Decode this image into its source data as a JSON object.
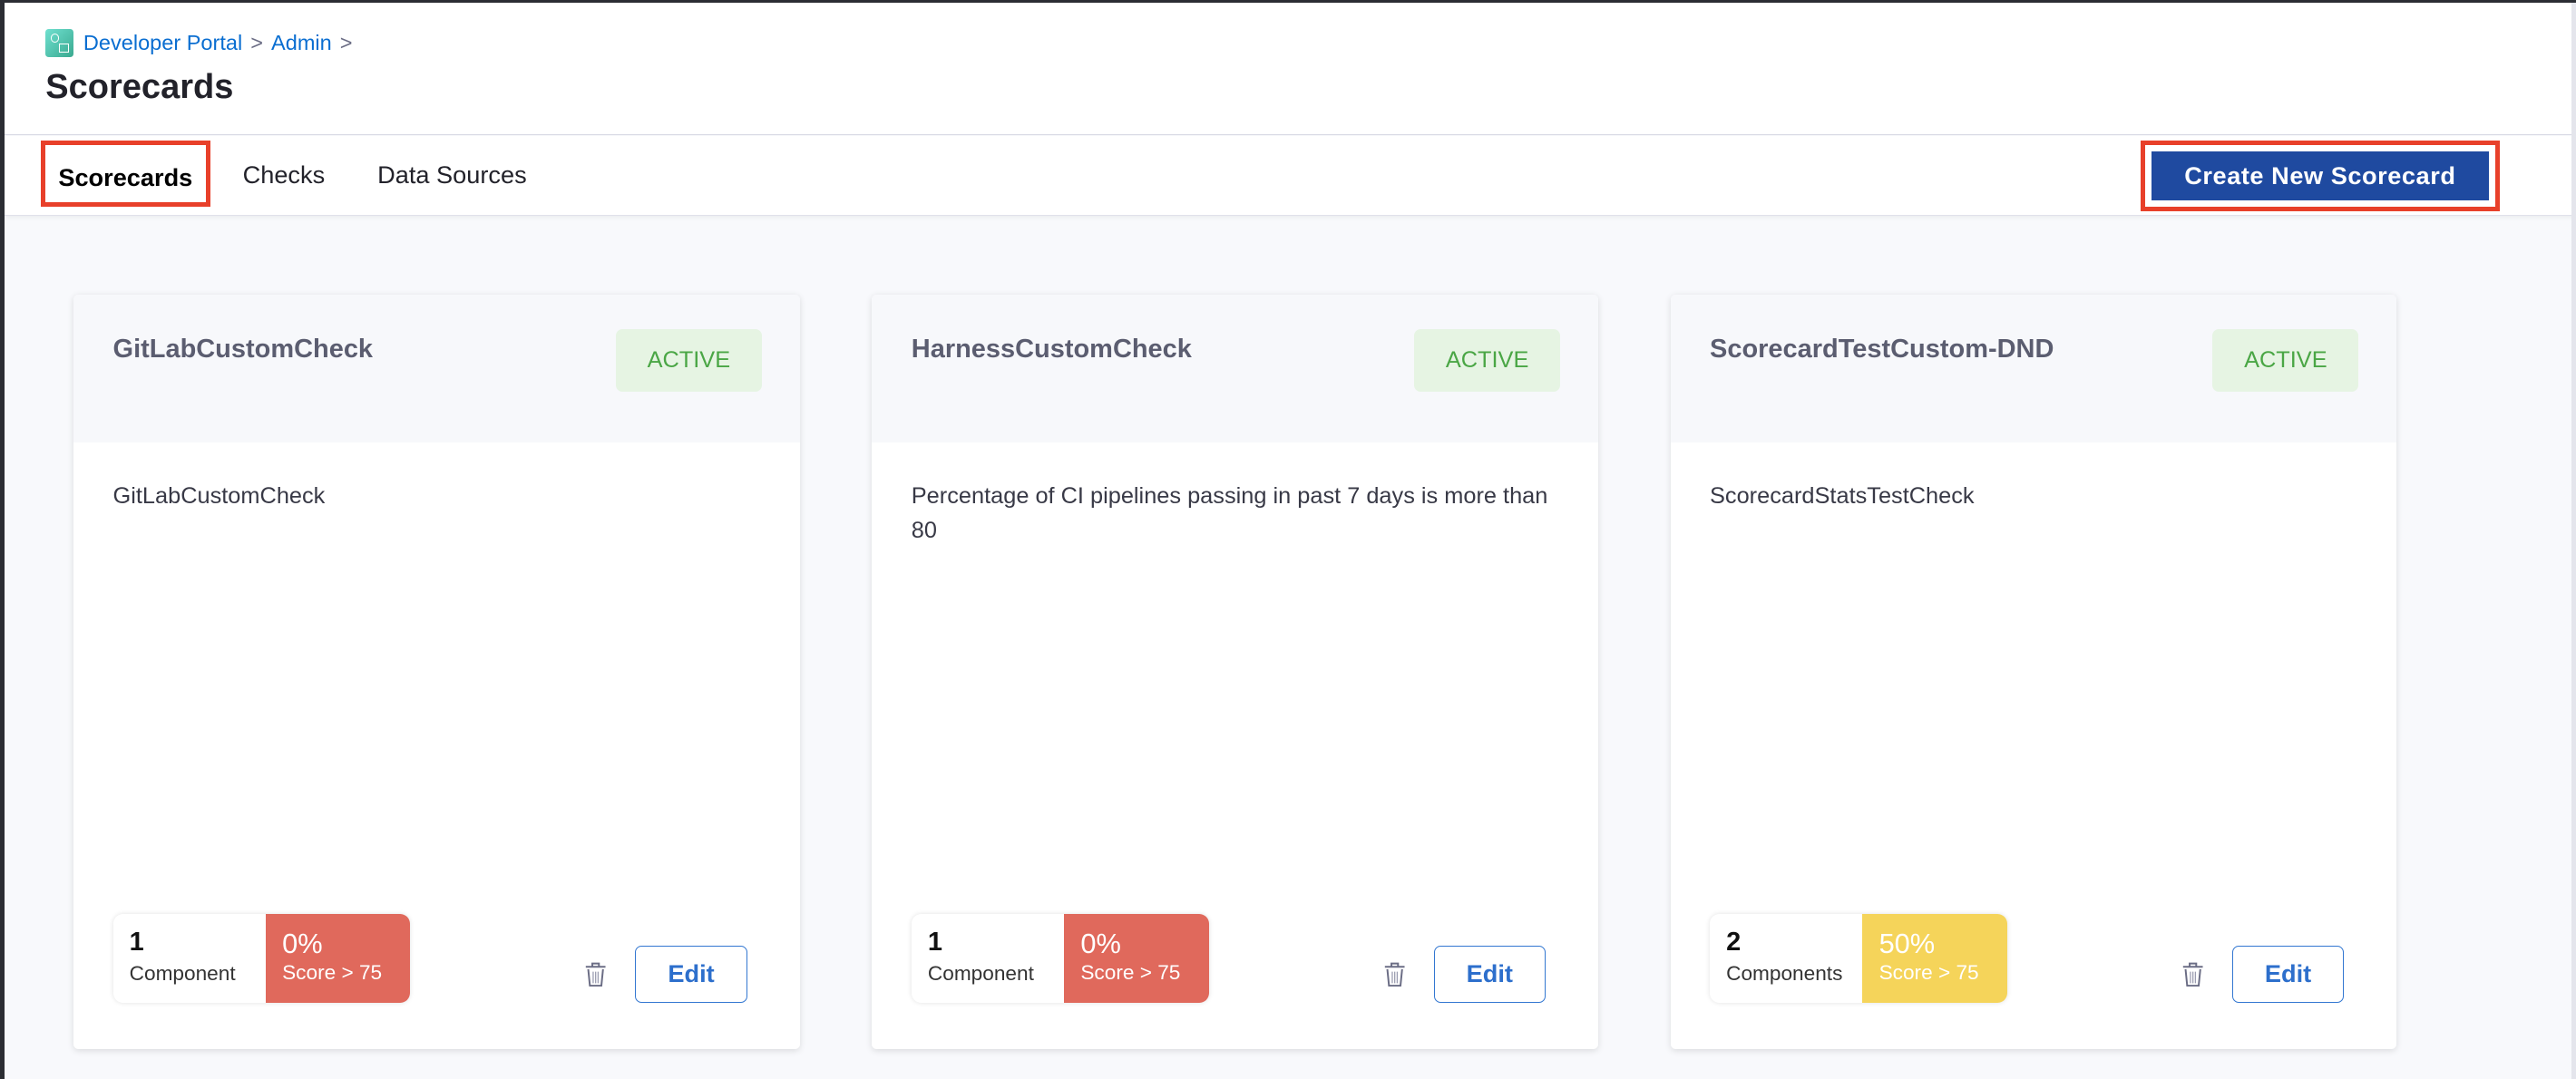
{
  "breadcrumb": [
    {
      "label": "Developer Portal"
    },
    {
      "label": "Admin"
    }
  ],
  "breadcrumb_separator": ">",
  "page_title": "Scorecards",
  "tabs": [
    {
      "label": "Scorecards",
      "active": true
    },
    {
      "label": "Checks"
    },
    {
      "label": "Data Sources"
    }
  ],
  "create_button": "Create New Scorecard",
  "colors": {
    "primary": "#1f4aa0",
    "highlight": "#e8402a",
    "score_low": "#e0695c",
    "score_mid": "#f5d45a",
    "active_bg": "#e6f4e3",
    "active_text": "#4aa645"
  },
  "cards": [
    {
      "name": "GitLabCustomCheck",
      "status": "ACTIVE",
      "description": "GitLabCustomCheck",
      "count": "1",
      "count_label": "Component",
      "score": "0%",
      "score_label": "Score > 75",
      "edit": "Edit",
      "score_color": "#e0695c"
    },
    {
      "name": "HarnessCustomCheck",
      "status": "ACTIVE",
      "description": "Percentage of CI pipelines passing in past 7 days is more than 80",
      "count": "1",
      "count_label": "Component",
      "score": "0%",
      "score_label": "Score > 75",
      "edit": "Edit",
      "score_color": "#e0695c"
    },
    {
      "name": "ScorecardTestCustom-DND",
      "status": "ACTIVE",
      "description": "ScorecardStatsTestCheck",
      "count": "2",
      "count_label": "Components",
      "score": "50%",
      "score_label": "Score > 75",
      "edit": "Edit",
      "score_color": "#f5d45a"
    }
  ]
}
